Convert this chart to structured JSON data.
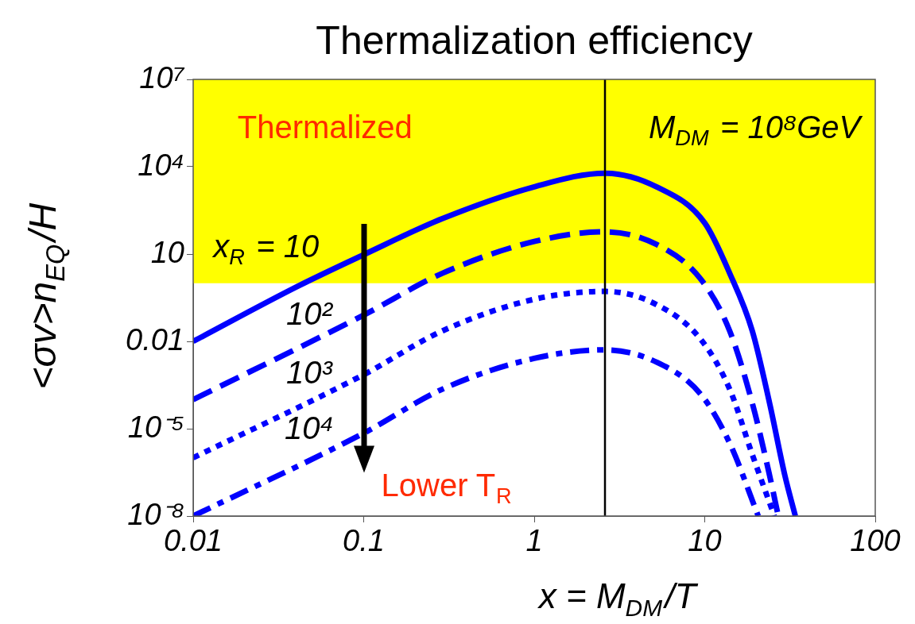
{
  "chart_data": {
    "type": "line",
    "title": "Thermalization efficiency",
    "xlabel": "x = M$_{DM}$/T",
    "ylabel": "<σv>n$_{EQ}$/H",
    "log": "xy",
    "grid": false,
    "marker": "none",
    "xlim": [
      0.01,
      100
    ],
    "ylim": [
      1e-08,
      10000000.0
    ],
    "xticks": [
      0.01,
      0.1,
      1,
      10,
      100
    ],
    "yticks": [
      {
        "value": 1e-08,
        "label": "10⁻⁸"
      },
      {
        "value": 1e-05,
        "label": "10⁻⁵"
      },
      {
        "value": 0.01,
        "label": "0.01"
      },
      {
        "value": 10,
        "label": "10"
      },
      {
        "value": 10000,
        "label": "10⁴"
      },
      {
        "value": 10000000,
        "label": "10⁷"
      }
    ],
    "bands": [
      {
        "axis": "y",
        "from": 1,
        "to": 10000000,
        "label": "Thermalized",
        "color": "#ffff00"
      }
    ],
    "ref_lines": [
      {
        "axis": "x",
        "value": 2.6,
        "color": "#000000"
      }
    ],
    "annotations": [
      "Lower T$_{R}$",
      "M$_{DM}$ = 10⁸GeV"
    ],
    "series": [
      {
        "name": "x$_{R}$ = 10",
        "color": "#0000ff",
        "line_style": "solid",
        "x": [
          0.01,
          0.041,
          0.1,
          0.29,
          1,
          2.6,
          5.25,
          10,
          14,
          19,
          24,
          29.5,
          34
        ],
        "values": [
          0.01,
          0.78,
          9.5,
          165,
          2040,
          6000,
          2000,
          117,
          2.2,
          0.023,
          7.6e-05,
          2.5e-07,
          1e-08
        ]
      },
      {
        "name": "10²",
        "color": "#0000ff",
        "line_style": "dashed",
        "x": [
          0.01,
          0.1,
          0.29,
          1,
          2.6,
          5.25,
          9.5,
          14,
          19,
          24,
          27
        ],
        "values": [
          0.0001,
          0.08,
          2.2,
          27,
          58,
          21,
          1.35,
          0.023,
          7.6e-05,
          2.5e-07,
          1e-08
        ]
      },
      {
        "name": "10³",
        "color": "#0000ff",
        "line_style": "dotted",
        "x": [
          0.01,
          0.1,
          0.29,
          1,
          2.6,
          5.25,
          9.5,
          14,
          19,
          25.6
        ],
        "values": [
          1e-06,
          0.00072,
          0.023,
          0.28,
          0.52,
          0.18,
          0.0115,
          0.00023,
          1.3e-06,
          1e-08
        ]
      },
      {
        "name": "10⁴",
        "color": "#0000ff",
        "line_style": "dashdot",
        "x": [
          0.01,
          0.1,
          0.29,
          1,
          2.6,
          5.25,
          9.5,
          14,
          20.6
        ],
        "values": [
          1e-08,
          7e-06,
          0.00023,
          0.0026,
          0.0051,
          0.0019,
          0.00015,
          3.2e-06,
          1e-08
        ]
      }
    ]
  }
}
